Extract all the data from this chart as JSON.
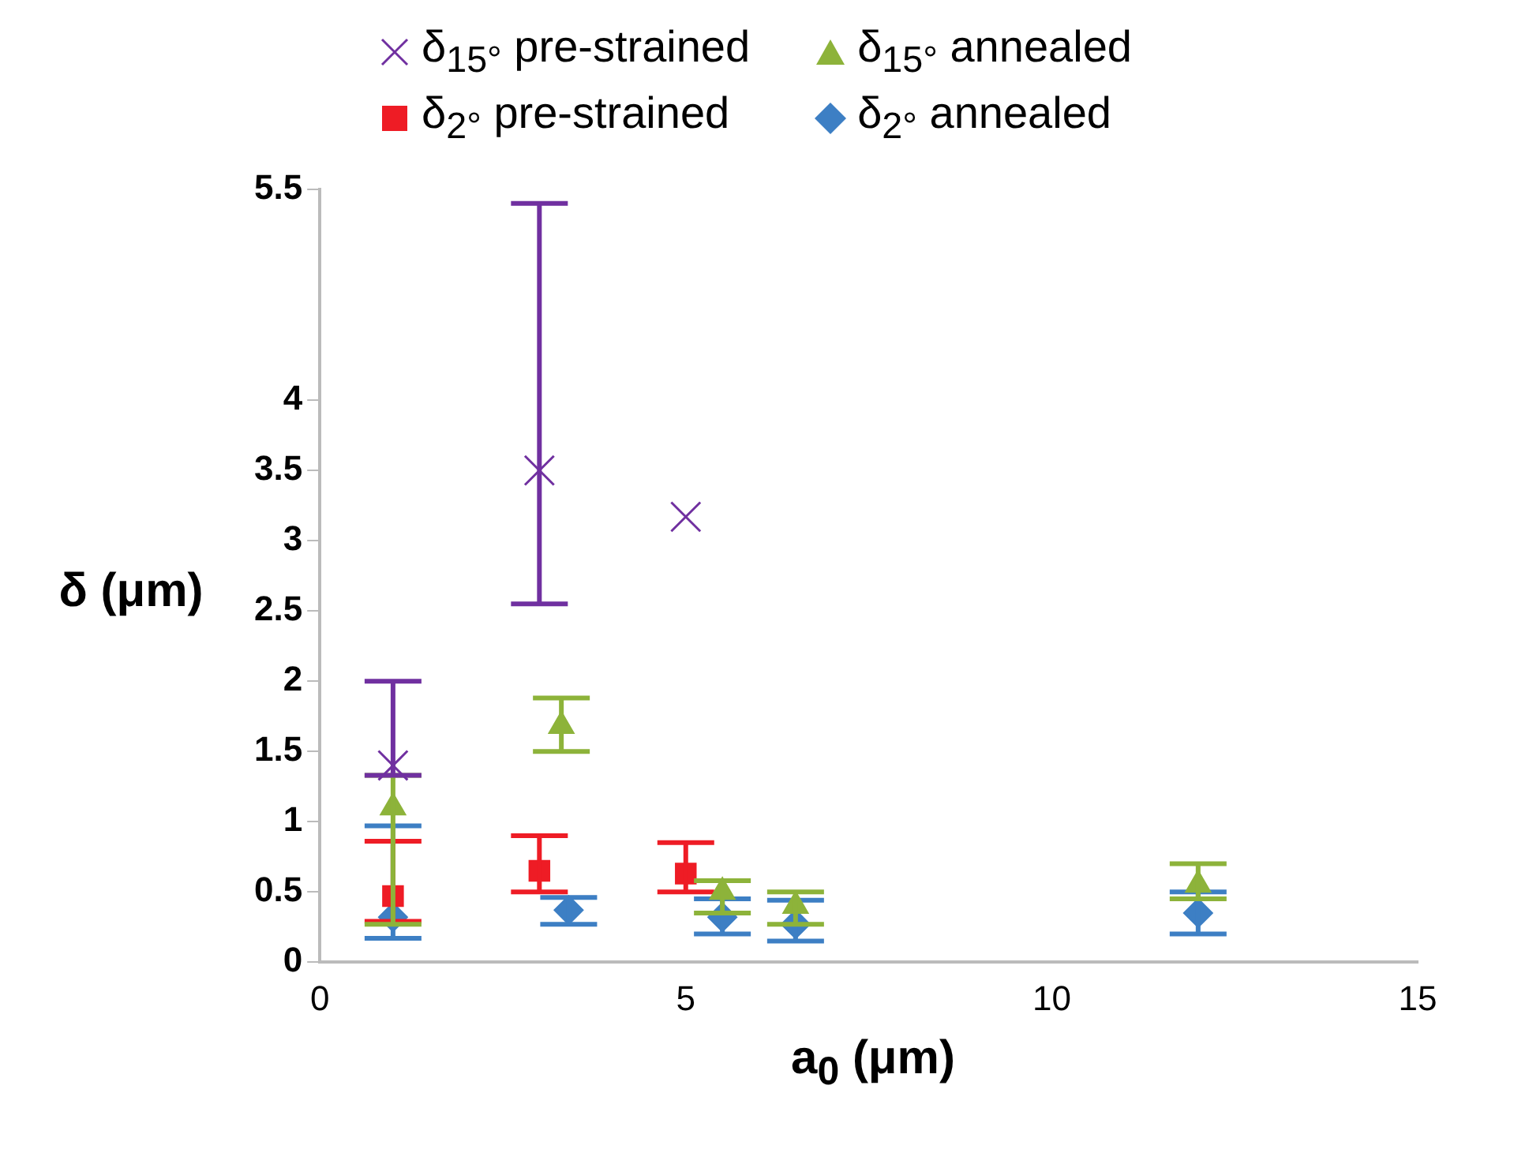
{
  "chart_data": {
    "type": "scatter",
    "xlabel": "a$_{0}$ (μm)",
    "ylabel": "δ (μm)",
    "xlim": [
      0,
      15
    ],
    "xticks": [
      0,
      5,
      10,
      15
    ],
    "ylim": [
      0,
      5.5
    ],
    "yticks": [
      0,
      0.5,
      1,
      1.5,
      2,
      2.5,
      3,
      3.5,
      4,
      5.5
    ],
    "grid": false,
    "legend": "top",
    "series": [
      {
        "name": "δ$_{15°}$ pre-strained",
        "color": "#7030a0",
        "marker": "cross",
        "x": [
          1,
          3,
          5
        ],
        "values": [
          1.4,
          3.5,
          3.17
        ],
        "errors": [
          [
            1.33,
            2.0
          ],
          [
            2.55,
            5.4
          ],
          null
        ]
      },
      {
        "name": "δ$_{15°}$ annealed",
        "color": "#8db33a",
        "marker": "triangle",
        "x": [
          1,
          3.3,
          5.5,
          6.5,
          12
        ],
        "values": [
          1.1,
          1.68,
          0.5,
          0.4,
          0.55
        ],
        "errors": [
          [
            0.27,
            1.33
          ],
          [
            1.5,
            1.88
          ],
          [
            0.35,
            0.58
          ],
          [
            0.27,
            0.5
          ],
          [
            0.45,
            0.7
          ]
        ]
      },
      {
        "name": "δ$_{2°}$ pre-strained",
        "color": "#ee1c25",
        "marker": "square",
        "x": [
          1,
          3,
          5
        ],
        "values": [
          0.47,
          0.65,
          0.63
        ],
        "errors": [
          [
            0.29,
            0.86
          ],
          [
            0.5,
            0.9
          ],
          [
            0.5,
            0.85
          ]
        ]
      },
      {
        "name": "δ$_{2°}$ annealed",
        "color": "#3d7fc4",
        "marker": "diamond",
        "x": [
          1,
          3.4,
          5.5,
          6.5,
          12
        ],
        "values": [
          0.32,
          0.37,
          0.32,
          0.27,
          0.35
        ],
        "errors": [
          [
            0.17,
            0.97
          ],
          [
            0.27,
            0.46
          ],
          [
            0.2,
            0.45
          ],
          [
            0.15,
            0.44
          ],
          [
            0.2,
            0.5
          ]
        ]
      }
    ]
  }
}
